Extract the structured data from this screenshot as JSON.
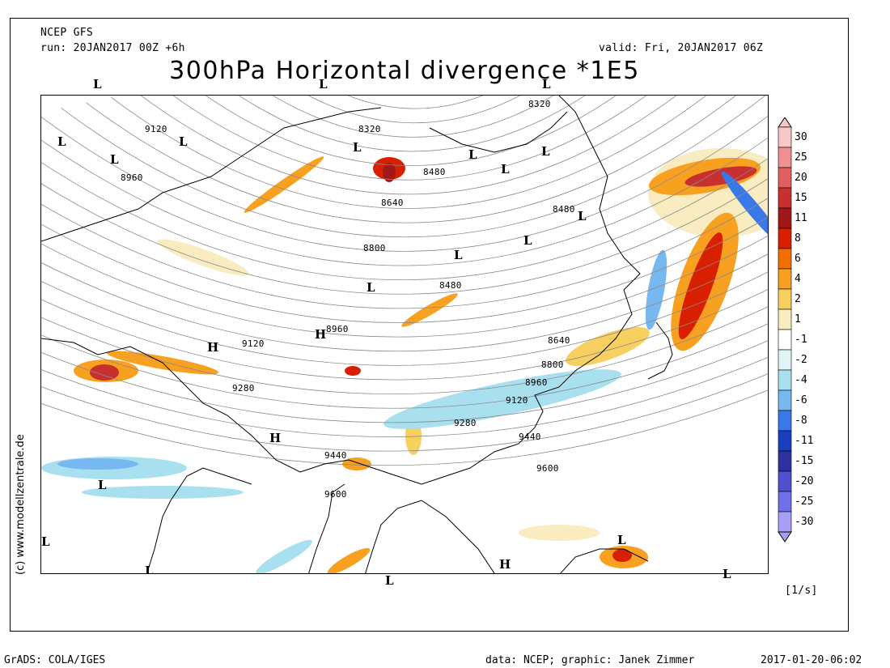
{
  "header": {
    "model": "NCEP GFS",
    "run": "run: 20JAN2017 00Z +6h",
    "valid": "valid: Fri, 20JAN2017 06Z",
    "title": "300hPa Horizontal divergence *1E5"
  },
  "map": {
    "credit": "(c) www.modellzentrale.de",
    "height_labels": [
      "9120",
      "8960",
      "8320",
      "8480",
      "8640",
      "8800",
      "8480",
      "8480",
      "8320",
      "9120",
      "9280",
      "8960",
      "8640",
      "8800",
      "8960",
      "9120",
      "9280",
      "9440",
      "9440",
      "9600",
      "9600"
    ],
    "pressure_centers": [
      "L",
      "L",
      "L",
      "L",
      "L",
      "L",
      "L",
      "L",
      "L",
      "L",
      "L",
      "H",
      "H",
      "H",
      "L",
      "H",
      "L",
      "L",
      "L",
      "L",
      "L"
    ]
  },
  "legend": {
    "colors": [
      "#f8c8c8",
      "#f09090",
      "#e06060",
      "#c83030",
      "#a01818",
      "#d82000",
      "#f07000",
      "#f8a020",
      "#f8d060",
      "#f8ecc0",
      "#ffffff",
      "#e0f4f8",
      "#a8e0f0",
      "#78b8f0",
      "#3878e8",
      "#1840c0",
      "#3030a0",
      "#5050d0",
      "#7070e8",
      "#a8a0f8"
    ],
    "labels": [
      "30",
      "25",
      "20",
      "15",
      "11",
      "8",
      "6",
      "4",
      "2",
      "1",
      "-1",
      "-2",
      "-4",
      "-6",
      "-8",
      "-11",
      "-15",
      "-20",
      "-25",
      "-30"
    ],
    "unit": "[1/s]"
  },
  "footer": {
    "left": "GrADS: COLA/IGES",
    "middle": "data: NCEP; graphic: Janek Zimmer",
    "right": "2017-01-20-06:02"
  }
}
